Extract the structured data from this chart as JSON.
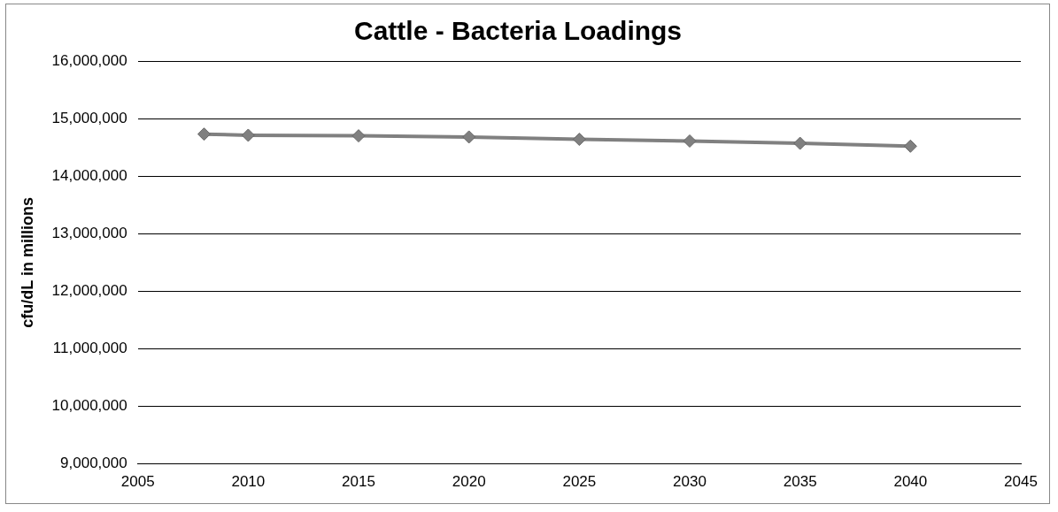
{
  "chart_data": {
    "type": "line",
    "title": "Cattle - Bacteria Loadings",
    "ylabel": "cfu/dL in millions",
    "x": [
      2008,
      2010,
      2015,
      2020,
      2025,
      2030,
      2035,
      2040
    ],
    "series": [
      {
        "color": "#808080",
        "values": [
          14730000,
          14710000,
          14700000,
          14680000,
          14640000,
          14610000,
          14570000,
          14520000
        ]
      }
    ],
    "xlim": [
      2005,
      2045
    ],
    "xticks": [
      2005,
      2010,
      2015,
      2020,
      2025,
      2030,
      2035,
      2040,
      2045
    ],
    "ylim": [
      9000000,
      16000000
    ],
    "yticks": [
      {
        "value": 9000000,
        "label": "9,000,000"
      },
      {
        "value": 10000000,
        "label": "10,000,000"
      },
      {
        "value": 11000000,
        "label": "11,000,000"
      },
      {
        "value": 12000000,
        "label": "12,000,000"
      },
      {
        "value": 13000000,
        "label": "13,000,000"
      },
      {
        "value": 14000000,
        "label": "14,000,000"
      },
      {
        "value": 15000000,
        "label": "15,000,000"
      },
      {
        "value": 16000000,
        "label": "16,000,000"
      }
    ],
    "grid": "y",
    "marker": "diamond",
    "line_style": "solid",
    "legend": false
  }
}
